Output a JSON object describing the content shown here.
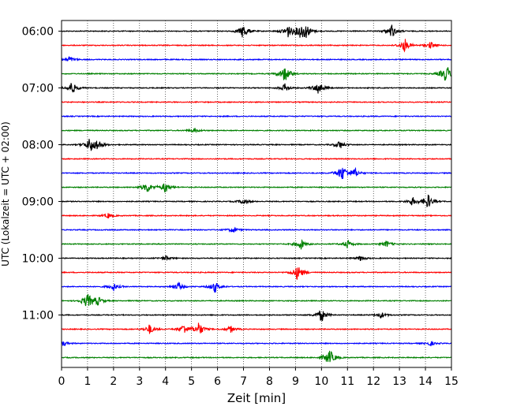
{
  "chart_data": {
    "type": "line",
    "title": "",
    "xlabel": "Zeit  [min]",
    "ylabel": "UTC (Lokalzeit = UTC + 02:00)",
    "xlim": [
      0,
      15
    ],
    "x_ticks": [
      0,
      1,
      2,
      3,
      4,
      5,
      6,
      7,
      8,
      9,
      10,
      11,
      12,
      13,
      14,
      15
    ],
    "x_tick_labels": [
      "0",
      "1",
      "2",
      "3",
      "4",
      "5",
      "6",
      "7",
      "8",
      "9",
      "10",
      "11",
      "12",
      "13",
      "14",
      "15"
    ],
    "y_tick_labels": [
      "06:00",
      "07:00",
      "08:00",
      "09:00",
      "10:00",
      "11:00"
    ],
    "grid": "vertical dotted lines at each minute",
    "legend": "none",
    "trace_minutes": 15,
    "colors": [
      "#000000",
      "#ff0000",
      "#0000ff",
      "#008000"
    ],
    "traces": [
      {
        "start": "06:00",
        "color": "#000000",
        "events": [
          [
            7.0,
            1.0
          ],
          [
            8.7,
            0.9
          ],
          [
            9.2,
            0.8
          ],
          [
            9.4,
            1.0
          ],
          [
            12.7,
            0.9
          ]
        ]
      },
      {
        "start": "06:15",
        "color": "#ff0000",
        "events": [
          [
            13.2,
            0.8
          ],
          [
            14.2,
            0.4
          ]
        ]
      },
      {
        "start": "06:30",
        "color": "#0000ff",
        "events": [
          [
            0.3,
            0.4
          ]
        ]
      },
      {
        "start": "06:45",
        "color": "#008000",
        "events": [
          [
            8.6,
            1.2
          ],
          [
            14.8,
            1.4
          ]
        ]
      },
      {
        "start": "07:00",
        "color": "#000000",
        "events": [
          [
            0.4,
            0.8
          ],
          [
            8.6,
            0.5
          ],
          [
            9.9,
            0.9
          ]
        ]
      },
      {
        "start": "07:15",
        "color": "#ff0000",
        "events": []
      },
      {
        "start": "07:30",
        "color": "#0000ff",
        "events": []
      },
      {
        "start": "07:45",
        "color": "#008000",
        "events": [
          [
            5.1,
            0.3
          ]
        ]
      },
      {
        "start": "08:00",
        "color": "#000000",
        "events": [
          [
            1.1,
            1.0
          ],
          [
            1.4,
            0.6
          ],
          [
            10.7,
            0.5
          ]
        ]
      },
      {
        "start": "08:15",
        "color": "#ff0000",
        "events": []
      },
      {
        "start": "08:30",
        "color": "#0000ff",
        "events": [
          [
            10.8,
            1.3
          ],
          [
            11.3,
            0.5
          ]
        ]
      },
      {
        "start": "08:45",
        "color": "#008000",
        "events": [
          [
            3.3,
            0.7
          ],
          [
            4.0,
            0.7
          ]
        ]
      },
      {
        "start": "09:00",
        "color": "#000000",
        "events": [
          [
            7.0,
            0.4
          ],
          [
            13.5,
            0.5
          ],
          [
            14.1,
            0.9
          ]
        ]
      },
      {
        "start": "09:15",
        "color": "#ff0000",
        "events": [
          [
            1.8,
            0.3
          ]
        ]
      },
      {
        "start": "09:30",
        "color": "#0000ff",
        "events": [
          [
            6.6,
            0.4
          ]
        ]
      },
      {
        "start": "09:45",
        "color": "#008000",
        "events": [
          [
            9.2,
            0.7
          ],
          [
            11.0,
            0.5
          ],
          [
            12.5,
            0.4
          ]
        ]
      },
      {
        "start": "10:00",
        "color": "#000000",
        "events": [
          [
            4.0,
            0.3
          ],
          [
            11.5,
            0.3
          ]
        ]
      },
      {
        "start": "10:15",
        "color": "#ff0000",
        "events": [
          [
            9.1,
            1.1
          ]
        ]
      },
      {
        "start": "10:30",
        "color": "#0000ff",
        "events": [
          [
            2.0,
            0.5
          ],
          [
            4.5,
            0.5
          ],
          [
            5.9,
            0.7
          ]
        ]
      },
      {
        "start": "10:45",
        "color": "#008000",
        "events": [
          [
            1.0,
            1.1
          ],
          [
            1.4,
            0.5
          ]
        ]
      },
      {
        "start": "11:00",
        "color": "#000000",
        "events": [
          [
            10.0,
            0.8
          ],
          [
            12.3,
            0.4
          ]
        ]
      },
      {
        "start": "11:15",
        "color": "#ff0000",
        "events": [
          [
            3.4,
            0.6
          ],
          [
            4.7,
            0.6
          ],
          [
            5.3,
            0.9
          ],
          [
            6.5,
            0.4
          ]
        ]
      },
      {
        "start": "11:30",
        "color": "#0000ff",
        "events": [
          [
            0.1,
            0.3
          ],
          [
            14.2,
            0.3
          ]
        ]
      },
      {
        "start": "11:45",
        "color": "#008000",
        "events": [
          [
            10.3,
            1.3
          ]
        ]
      }
    ]
  }
}
